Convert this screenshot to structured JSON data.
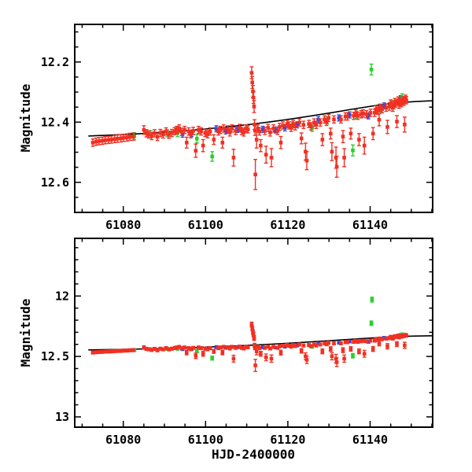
{
  "chart_data": {
    "type": "scatter",
    "title": "",
    "xlabel": "HJD-2400000",
    "ylabel": "Magnitude",
    "grid": false,
    "legend": "none",
    "axis_color": "#000000",
    "background": "#ffffff",
    "xlim": [
      61068.2,
      61155.2
    ],
    "x_ticks": [
      61080,
      61100,
      61120,
      61140
    ],
    "x_tick_labels": [
      "61080",
      "61100",
      "61120",
      "61140"
    ],
    "x_minor_step": 5,
    "panels": [
      {
        "name": "top-zoomed-panel",
        "y_top": 12.075,
        "y_bottom": 12.7,
        "y_ticks": [
          12.2,
          12.4,
          12.6
        ],
        "y_tick_labels": [
          "12.2",
          "12.4",
          "12.6"
        ],
        "y_minor_step": 0.05
      },
      {
        "name": "bottom-wide-panel",
        "y_top": 11.523,
        "y_bottom": 13.085,
        "y_ticks": [
          12,
          12.5,
          13
        ],
        "y_tick_labels": [
          "12",
          "12.5",
          "13"
        ],
        "y_minor_step": 0.1
      }
    ],
    "model_curve": {
      "color": "#000000",
      "points": [
        [
          61071.5,
          12.446
        ],
        [
          61076,
          12.4435
        ],
        [
          61081,
          12.4405
        ],
        [
          61086,
          12.437
        ],
        [
          61091,
          12.4325
        ],
        [
          61096,
          12.4275
        ],
        [
          61101,
          12.4215
        ],
        [
          61106,
          12.4145
        ],
        [
          61111,
          12.407
        ],
        [
          61116,
          12.3985
        ],
        [
          61121,
          12.389
        ],
        [
          61126,
          12.3785
        ],
        [
          61131,
          12.3675
        ],
        [
          61136,
          12.356
        ],
        [
          61141,
          12.3455
        ],
        [
          61146,
          12.336
        ],
        [
          61151,
          12.3315
        ],
        [
          61155.2,
          12.329
        ]
      ]
    },
    "series": [
      {
        "name": "blue-points",
        "color": "#2b4bdb",
        "marker": "square",
        "default_err": 0.01,
        "points": [
          [
            61094.4,
            12.44
          ],
          [
            61096.6,
            12.438
          ],
          [
            61102.6,
            12.422
          ],
          [
            61104.9,
            12.429
          ],
          [
            61107.8,
            12.424
          ],
          [
            61113.9,
            12.424
          ],
          [
            61117.0,
            12.426
          ],
          [
            61119.3,
            12.419
          ],
          [
            61122.3,
            12.409
          ],
          [
            61127.4,
            12.392
          ],
          [
            61132.4,
            12.386
          ],
          [
            61135.0,
            12.376
          ],
          [
            61139.6,
            12.379
          ],
          [
            61143.4,
            12.346
          ],
          [
            61147.4,
            12.322
          ]
        ]
      },
      {
        "name": "green-points",
        "color": "#2cce2c",
        "marker": "square",
        "default_err": 0.012,
        "points": [
          [
            61082.7,
            12.447
          ],
          [
            61086.6,
            12.44
          ],
          [
            61090.7,
            12.437
          ],
          [
            61093.2,
            12.436
          ],
          [
            61097.9,
            12.455,
            0.014
          ],
          [
            61101.6,
            12.514,
            0.016
          ],
          [
            61121.0,
            12.411
          ],
          [
            61125.9,
            12.419
          ],
          [
            61129.6,
            12.394
          ],
          [
            61135.8,
            12.494,
            0.018
          ],
          [
            61136.7,
            12.376
          ],
          [
            61140.3,
            12.225,
            0.018
          ],
          [
            61140.45,
            12.03,
            0.02
          ],
          [
            61142.6,
            12.356
          ],
          [
            61145.2,
            12.341
          ],
          [
            61147.8,
            12.318
          ]
        ]
      },
      {
        "name": "red-points",
        "color": "#f13023",
        "marker": "square",
        "default_err": 0.012,
        "points": [
          [
            61072.6,
            12.468
          ],
          [
            61073.4,
            12.465
          ],
          [
            61074.1,
            12.463
          ],
          [
            61074.9,
            12.462
          ],
          [
            61075.6,
            12.46
          ],
          [
            61076.4,
            12.459
          ],
          [
            61077.1,
            12.458
          ],
          [
            61077.9,
            12.456
          ],
          [
            61078.6,
            12.455
          ],
          [
            61079.4,
            12.454
          ],
          [
            61080.1,
            12.452
          ],
          [
            61080.9,
            12.451
          ],
          [
            61081.6,
            12.449
          ],
          [
            61082.4,
            12.448
          ],
          [
            61085.0,
            12.426,
            0.014
          ],
          [
            61085.6,
            12.437
          ],
          [
            61086.2,
            12.441
          ],
          [
            61086.9,
            12.446
          ],
          [
            61087.6,
            12.437
          ],
          [
            61088.3,
            12.449
          ],
          [
            61089.0,
            12.436
          ],
          [
            61089.7,
            12.441
          ],
          [
            61090.4,
            12.431
          ],
          [
            61091.1,
            12.442
          ],
          [
            61091.8,
            12.436
          ],
          [
            61092.5,
            12.43
          ],
          [
            61093.0,
            12.426
          ],
          [
            61093.6,
            12.421
          ],
          [
            61094.2,
            12.432
          ],
          [
            61094.9,
            12.426
          ],
          [
            61095.4,
            12.468,
            0.018
          ],
          [
            61095.9,
            12.431
          ],
          [
            61096.4,
            12.44
          ],
          [
            61097.0,
            12.429
          ],
          [
            61097.6,
            12.495,
            0.022
          ],
          [
            61098.3,
            12.426
          ],
          [
            61098.9,
            12.431
          ],
          [
            61099.4,
            12.478,
            0.02
          ],
          [
            61099.9,
            12.436
          ],
          [
            61100.5,
            12.44
          ],
          [
            61101.1,
            12.431
          ],
          [
            61102.0,
            12.458,
            0.016
          ],
          [
            61103.1,
            12.431
          ],
          [
            61103.6,
            12.426
          ],
          [
            61104.1,
            12.468,
            0.018
          ],
          [
            61104.4,
            12.421
          ],
          [
            61105.4,
            12.424
          ],
          [
            61105.9,
            12.434
          ],
          [
            61106.4,
            12.421
          ],
          [
            61106.8,
            12.518,
            0.028
          ],
          [
            61107.3,
            12.429
          ],
          [
            61108.3,
            12.419
          ],
          [
            61108.8,
            12.429
          ],
          [
            61109.3,
            12.434
          ],
          [
            61109.8,
            12.421
          ],
          [
            61110.3,
            12.424
          ],
          [
            61111.2,
            12.236,
            0.02
          ],
          [
            61111.35,
            12.268,
            0.02
          ],
          [
            61111.5,
            12.298,
            0.02
          ],
          [
            61111.65,
            12.318,
            0.02
          ],
          [
            61111.8,
            12.348,
            0.02
          ],
          [
            61111.9,
            12.408,
            0.016
          ],
          [
            61112.0,
            12.428,
            0.016
          ],
          [
            61112.1,
            12.574,
            0.05
          ],
          [
            61112.4,
            12.458,
            0.028
          ],
          [
            61112.7,
            12.421
          ],
          [
            61113.1,
            12.431
          ],
          [
            61113.4,
            12.478,
            0.02
          ],
          [
            61114.4,
            12.429
          ],
          [
            61114.7,
            12.508,
            0.028
          ],
          [
            61115.2,
            12.419
          ],
          [
            61115.7,
            12.434
          ],
          [
            61116.0,
            12.518,
            0.03
          ],
          [
            61116.5,
            12.421
          ],
          [
            61117.5,
            12.429
          ],
          [
            61118.0,
            12.416
          ],
          [
            61118.3,
            12.468,
            0.02
          ],
          [
            61118.8,
            12.411
          ],
          [
            61119.8,
            12.406
          ],
          [
            61120.3,
            12.411
          ],
          [
            61120.8,
            12.419
          ],
          [
            61121.3,
            12.406
          ],
          [
            61121.8,
            12.414
          ],
          [
            61122.8,
            12.401
          ],
          [
            61123.3,
            12.454,
            0.018
          ],
          [
            61123.8,
            12.409
          ],
          [
            61124.3,
            12.498,
            0.028
          ],
          [
            61124.6,
            12.528,
            0.03
          ],
          [
            61125.1,
            12.406
          ],
          [
            61125.6,
            12.414
          ],
          [
            61126.4,
            12.401
          ],
          [
            61126.9,
            12.409
          ],
          [
            61127.9,
            12.401
          ],
          [
            61128.4,
            12.458,
            0.02
          ],
          [
            61128.9,
            12.391
          ],
          [
            61129.4,
            12.399
          ],
          [
            61129.9,
            12.386
          ],
          [
            61130.4,
            12.438,
            0.018
          ],
          [
            61130.7,
            12.498,
            0.03
          ],
          [
            61131.2,
            12.391
          ],
          [
            61131.7,
            12.518,
            0.035
          ],
          [
            61131.9,
            12.548,
            0.035
          ],
          [
            61132.9,
            12.391
          ],
          [
            61133.4,
            12.448,
            0.02
          ],
          [
            61133.7,
            12.518,
            0.03
          ],
          [
            61134.0,
            12.381
          ],
          [
            61134.5,
            12.381
          ],
          [
            61135.3,
            12.438,
            0.018
          ],
          [
            61136.0,
            12.379
          ],
          [
            61136.5,
            12.371
          ],
          [
            61137.0,
            12.379
          ],
          [
            61137.3,
            12.458,
            0.02
          ],
          [
            61137.8,
            12.374
          ],
          [
            61138.3,
            12.371
          ],
          [
            61138.6,
            12.478,
            0.028
          ],
          [
            61139.1,
            12.374
          ],
          [
            61140.1,
            12.369
          ],
          [
            61140.7,
            12.438,
            0.02
          ],
          [
            61141.1,
            12.369
          ],
          [
            61141.4,
            12.358
          ],
          [
            61141.9,
            12.362
          ],
          [
            61142.2,
            12.392,
            0.02
          ],
          [
            61142.4,
            12.352
          ],
          [
            61142.9,
            12.357
          ],
          [
            61143.9,
            12.352
          ],
          [
            61144.2,
            12.416,
            0.022
          ],
          [
            61144.7,
            12.348
          ],
          [
            61145.0,
            12.338
          ],
          [
            61145.5,
            12.352
          ],
          [
            61145.7,
            12.343
          ],
          [
            61146.0,
            12.333
          ],
          [
            61146.2,
            12.338
          ],
          [
            61146.5,
            12.398,
            0.02
          ],
          [
            61146.8,
            12.328
          ],
          [
            61147.0,
            12.342
          ],
          [
            61147.2,
            12.332
          ],
          [
            61147.6,
            12.337
          ],
          [
            61148.0,
            12.327
          ],
          [
            61148.2,
            12.332
          ],
          [
            61148.4,
            12.408,
            0.025
          ],
          [
            61148.6,
            12.322
          ],
          [
            61148.8,
            12.327
          ]
        ]
      }
    ]
  }
}
